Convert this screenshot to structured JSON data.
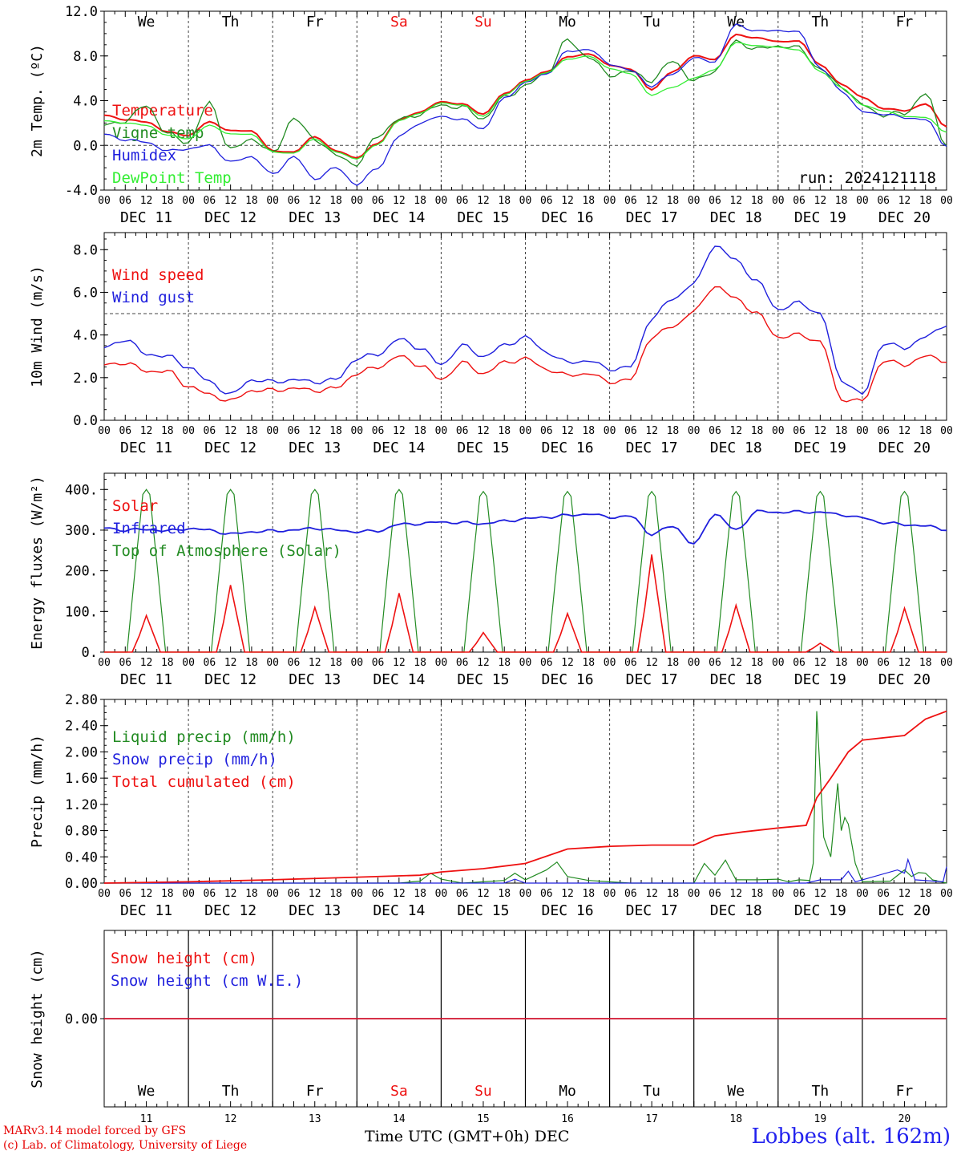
{
  "run_label": "run: 2024121118",
  "footer": {
    "model": "MARv3.14 model forced by GFS",
    "copyright": "(c) Lab. of Climatology, University of Liege",
    "station": "Lobbes (alt. 162m)",
    "x_title": "Time UTC (GMT+0h)",
    "x_month": "DEC"
  },
  "weekdays": [
    "We",
    "Th",
    "Fr",
    "Sa",
    "Su",
    "Mo",
    "Tu",
    "We",
    "Th",
    "Fr"
  ],
  "weekend_days": [
    "Sa",
    "Su"
  ],
  "date_labels": [
    "DEC 11",
    "DEC 12",
    "DEC 13",
    "DEC 14",
    "DEC 15",
    "DEC 16",
    "DEC 17",
    "DEC 18",
    "DEC 19",
    "DEC 20"
  ],
  "day_numbers": [
    "11",
    "12",
    "13",
    "14",
    "15",
    "16",
    "17",
    "18",
    "19",
    "20"
  ],
  "hour_ticks": [
    "00",
    "06",
    "12",
    "18"
  ],
  "last_hour_tick": "00",
  "colors": {
    "red": "#ee1111",
    "green": "#228b22",
    "blue": "#1f1fdd",
    "lime": "#33ee33"
  },
  "chart_data": [
    {
      "type": "line",
      "ylabel": "2m Temp. (ºC)",
      "ylim": [
        -4,
        12
      ],
      "yticks": [
        "-4.0",
        "0.0",
        "4.0",
        "8.0",
        "12.0"
      ],
      "reference_line": 0,
      "x_hours": [
        0,
        6,
        12,
        18,
        24,
        30,
        36,
        42,
        48,
        54,
        60,
        66,
        72,
        78,
        84,
        90,
        96,
        102,
        108,
        114,
        120,
        126,
        132,
        138,
        144,
        150,
        156,
        162,
        168,
        174,
        180,
        186,
        192,
        198,
        204,
        210,
        216,
        222,
        228,
        234,
        240
      ],
      "series": [
        {
          "name": "Temperature",
          "color": "red",
          "values": [
            2.7,
            2.3,
            2.1,
            1.2,
            0.9,
            2.1,
            1.3,
            1.3,
            -0.5,
            -0.6,
            0.8,
            -0.5,
            -1.1,
            0.2,
            2.3,
            3.0,
            3.9,
            3.7,
            2.8,
            4.6,
            5.8,
            6.6,
            7.9,
            8.2,
            7.2,
            6.8,
            5.0,
            6.6,
            8.0,
            7.7,
            9.9,
            9.6,
            9.3,
            9.3,
            7.2,
            5.5,
            4.3,
            3.3,
            3.1,
            3.7,
            1.7
          ]
        },
        {
          "name": "Vigne temp",
          "color": "green",
          "values": [
            1.8,
            2.2,
            3.6,
            1.0,
            0.3,
            3.8,
            -0.4,
            0.6,
            -0.7,
            2.4,
            0.6,
            -0.9,
            -1.7,
            0.9,
            2.3,
            2.8,
            3.6,
            3.4,
            2.4,
            4.3,
            5.3,
            6.5,
            9.4,
            7.9,
            6.3,
            6.6,
            5.8,
            7.6,
            5.7,
            6.7,
            9.3,
            8.6,
            8.9,
            8.7,
            6.8,
            5.3,
            3.6,
            2.7,
            2.9,
            4.6,
            0.1
          ]
        },
        {
          "name": "Humidex",
          "color": "blue",
          "values": [
            1.0,
            0.5,
            0.3,
            -0.5,
            -0.3,
            0.0,
            -1.5,
            -1.0,
            -2.6,
            -1.0,
            -3.0,
            -2.0,
            -3.5,
            -2.0,
            0.8,
            2.0,
            2.6,
            2.3,
            1.5,
            4.2,
            5.6,
            6.4,
            8.4,
            8.6,
            7.3,
            6.7,
            5.3,
            6.4,
            7.8,
            7.5,
            10.8,
            10.2,
            10.3,
            10.1,
            6.9,
            4.9,
            3.0,
            2.8,
            2.5,
            2.3,
            0.0
          ]
        },
        {
          "name": "DewPoint Temp",
          "color": "lime",
          "values": [
            2.2,
            2.0,
            1.8,
            0.9,
            0.6,
            1.8,
            1.0,
            1.0,
            -0.6,
            -0.7,
            0.6,
            -0.6,
            -1.2,
            0.1,
            2.2,
            2.9,
            3.8,
            3.6,
            2.6,
            4.5,
            5.7,
            6.5,
            7.7,
            8.0,
            6.9,
            6.4,
            4.5,
            5.2,
            6.0,
            6.8,
            9.2,
            8.9,
            8.8,
            8.5,
            6.6,
            5.2,
            3.6,
            3.1,
            2.6,
            2.5,
            1.2
          ]
        }
      ]
    },
    {
      "type": "line",
      "ylabel": "10m Wind (m/s)",
      "ylim": [
        0,
        8.8
      ],
      "yticks": [
        "0.0",
        "2.0",
        "4.0",
        "6.0",
        "8.0"
      ],
      "reference_line": 5,
      "x_hours": [
        0,
        6,
        12,
        18,
        24,
        30,
        36,
        42,
        48,
        54,
        60,
        66,
        72,
        78,
        84,
        90,
        96,
        102,
        108,
        114,
        120,
        126,
        132,
        138,
        144,
        150,
        156,
        162,
        168,
        174,
        180,
        186,
        192,
        198,
        204,
        210,
        216,
        222,
        228,
        234,
        240
      ],
      "series": [
        {
          "name": "Wind speed",
          "color": "red",
          "values": [
            2.6,
            2.7,
            2.3,
            2.3,
            1.6,
            1.2,
            0.9,
            1.4,
            1.4,
            1.5,
            1.4,
            1.5,
            2.2,
            2.5,
            3.0,
            2.6,
            1.9,
            2.7,
            2.2,
            2.7,
            2.9,
            2.4,
            2.1,
            2.2,
            1.8,
            1.9,
            3.9,
            4.4,
            5.1,
            6.3,
            5.7,
            5.0,
            3.9,
            4.0,
            3.7,
            1.0,
            0.9,
            2.8,
            2.6,
            3.0,
            2.8
          ]
        },
        {
          "name": "Wind gust",
          "color": "blue",
          "values": [
            3.4,
            3.8,
            3.1,
            3.0,
            2.5,
            1.8,
            1.2,
            1.9,
            1.8,
            1.9,
            1.8,
            1.9,
            2.9,
            3.1,
            3.8,
            3.4,
            2.6,
            3.5,
            3.0,
            3.5,
            3.9,
            3.2,
            2.7,
            2.8,
            2.4,
            2.5,
            4.8,
            5.7,
            6.4,
            8.2,
            7.5,
            6.5,
            5.2,
            5.5,
            5.0,
            1.9,
            1.2,
            3.6,
            3.4,
            3.9,
            4.5
          ]
        }
      ]
    },
    {
      "type": "line",
      "ylabel": "Energy fluxes (W/m²)",
      "ylim": [
        0,
        440
      ],
      "yticks": [
        "0.",
        "100.",
        "200.",
        "300.",
        "400."
      ],
      "series": [
        {
          "name": "Solar",
          "color": "red",
          "day_peaks": [
            90,
            165,
            110,
            145,
            48,
            95,
            240,
            115,
            22,
            108
          ]
        },
        {
          "name": "Infrared",
          "color": "blue",
          "x_hours": [
            0,
            6,
            12,
            18,
            24,
            30,
            36,
            42,
            48,
            54,
            60,
            66,
            72,
            78,
            84,
            90,
            96,
            102,
            108,
            114,
            120,
            126,
            132,
            138,
            144,
            150,
            156,
            162,
            168,
            174,
            180,
            186,
            192,
            198,
            204,
            210,
            216,
            222,
            228,
            234,
            240
          ],
          "values": [
            305,
            300,
            302,
            298,
            304,
            300,
            290,
            296,
            298,
            300,
            305,
            300,
            296,
            298,
            314,
            316,
            320,
            318,
            316,
            322,
            328,
            332,
            336,
            340,
            332,
            334,
            290,
            310,
            265,
            340,
            300,
            346,
            344,
            345,
            344,
            338,
            330,
            318,
            314,
            310,
            302
          ]
        },
        {
          "name": "Top of Atmosphere (Solar)",
          "color": "green",
          "day_peaks": [
            400,
            400,
            400,
            400,
            395,
            395,
            395,
            395,
            395,
            395
          ]
        }
      ]
    },
    {
      "type": "line",
      "ylabel": "Precip (mm/h)",
      "ylim": [
        0,
        2.8
      ],
      "yticks": [
        "0.00",
        "0.40",
        "0.80",
        "1.20",
        "1.60",
        "2.00",
        "2.40",
        "2.80"
      ],
      "series": [
        {
          "name": "Liquid precip (mm/h)",
          "color": "green",
          "points": [
            [
              0,
              0
            ],
            [
              84,
              0
            ],
            [
              90,
              0.03
            ],
            [
              93,
              0.15
            ],
            [
              96,
              0.06
            ],
            [
              102,
              0
            ],
            [
              114,
              0.04
            ],
            [
              117,
              0.15
            ],
            [
              120,
              0.05
            ],
            [
              126,
              0.2
            ],
            [
              129,
              0.32
            ],
            [
              132,
              0.1
            ],
            [
              138,
              0.04
            ],
            [
              144,
              0.02
            ],
            [
              150,
              0
            ],
            [
              168,
              0
            ],
            [
              171,
              0.3
            ],
            [
              174,
              0.12
            ],
            [
              177,
              0.35
            ],
            [
              180,
              0.05
            ],
            [
              186,
              0.05
            ],
            [
              192,
              0.06
            ],
            [
              195,
              0.02
            ],
            [
              198,
              0.05
            ],
            [
              201,
              0.04
            ],
            [
              202,
              0.3
            ],
            [
              203,
              2.62
            ],
            [
              205,
              0.7
            ],
            [
              207,
              0.4
            ],
            [
              209,
              1.52
            ],
            [
              210,
              0.8
            ],
            [
              211,
              1.0
            ],
            [
              212,
              0.9
            ],
            [
              214,
              0.3
            ],
            [
              216,
              0.02
            ],
            [
              224,
              0.03
            ],
            [
              228,
              0.2
            ],
            [
              230,
              0.1
            ],
            [
              232,
              0.16
            ],
            [
              234,
              0.15
            ],
            [
              236,
              0.05
            ],
            [
              240,
              0
            ]
          ]
        },
        {
          "name": "Snow precip (mm/h)",
          "color": "blue",
          "points": [
            [
              0,
              0
            ],
            [
              114,
              0
            ],
            [
              117,
              0.06
            ],
            [
              120,
              0
            ],
            [
              200,
              0
            ],
            [
              204,
              0.05
            ],
            [
              210,
              0.05
            ],
            [
              212,
              0.18
            ],
            [
              214,
              0.02
            ],
            [
              226,
              0.2
            ],
            [
              228,
              0.15
            ],
            [
              229,
              0.36
            ],
            [
              231,
              0.05
            ],
            [
              239,
              0.02
            ],
            [
              240,
              0.25
            ]
          ]
        },
        {
          "name": "Total cumulated (cm)",
          "color": "red",
          "points": [
            [
              0,
              0
            ],
            [
              24,
              0.02
            ],
            [
              48,
              0.05
            ],
            [
              72,
              0.09
            ],
            [
              90,
              0.12
            ],
            [
              96,
              0.17
            ],
            [
              108,
              0.22
            ],
            [
              120,
              0.3
            ],
            [
              132,
              0.52
            ],
            [
              144,
              0.56
            ],
            [
              156,
              0.58
            ],
            [
              168,
              0.58
            ],
            [
              174,
              0.72
            ],
            [
              182,
              0.78
            ],
            [
              192,
              0.84
            ],
            [
              200,
              0.88
            ],
            [
              203,
              1.3
            ],
            [
              207,
              1.6
            ],
            [
              212,
              2.0
            ],
            [
              216,
              2.18
            ],
            [
              228,
              2.25
            ],
            [
              234,
              2.5
            ],
            [
              240,
              2.62
            ]
          ]
        }
      ]
    },
    {
      "type": "line",
      "ylabel": "Snow height (cm)",
      "yticks": [
        "0.00"
      ],
      "series": [
        {
          "name": "Snow height (cm)",
          "color": "red",
          "values": [
            0,
            0
          ]
        },
        {
          "name": "Snow height (cm W.E.)",
          "color": "blue",
          "values": [
            0,
            0
          ]
        }
      ]
    }
  ]
}
